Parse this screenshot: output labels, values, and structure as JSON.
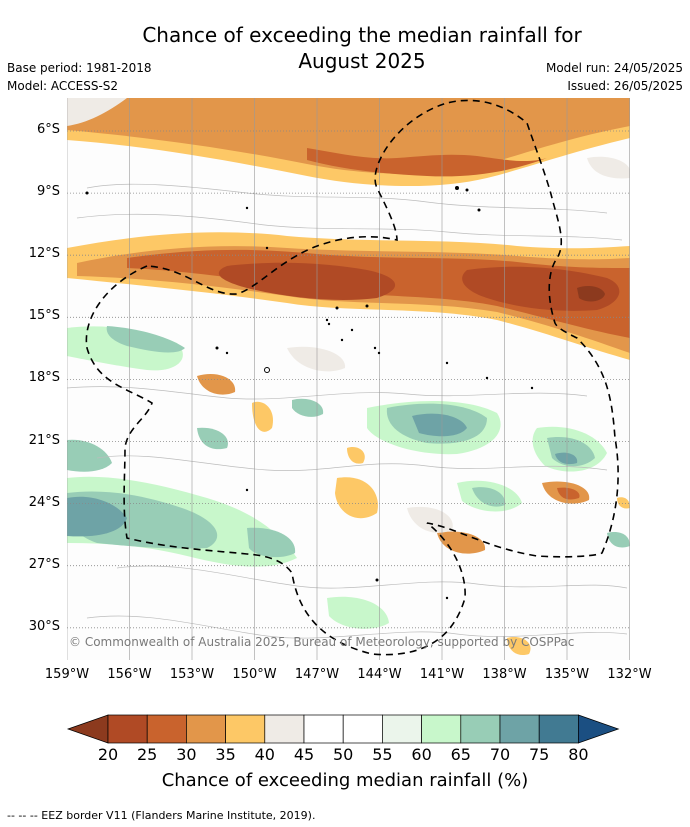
{
  "title_line1": "Chance of exceeding the median rainfall for",
  "title_line2": "August 2025",
  "base_period": "Base period: 1981-2018",
  "model": "Model: ACCESS-S2",
  "model_run": "Model run: 24/05/2025",
  "issued": "Issued: 26/05/2025",
  "lat_labels": [
    "6°S",
    "9°S",
    "12°S",
    "15°S",
    "18°S",
    "21°S",
    "24°S",
    "27°S",
    "30°S"
  ],
  "lon_labels": [
    "159°W",
    "156°W",
    "153°W",
    "150°W",
    "147°W",
    "144°W",
    "141°W",
    "138°W",
    "135°W",
    "132°W"
  ],
  "copyright": "© Commonwealth of Australia 2025, Bureau of Meteorology, supported by COSPPac",
  "colorbar": {
    "ticks": [
      "20",
      "25",
      "30",
      "35",
      "40",
      "45",
      "50",
      "55",
      "60",
      "65",
      "70",
      "75",
      "80"
    ],
    "colors": [
      "#8c3a1e",
      "#b04a25",
      "#c9632d",
      "#e2964a",
      "#fdc866",
      "#efebe6",
      "#ffffff",
      "#ffffff",
      "#ebf5eb",
      "#c8f7cb",
      "#98cdb6",
      "#6ea3a6",
      "#417a92",
      "#1b4f82"
    ],
    "title": "Chance of exceeding median rainfall (%)"
  },
  "eez_note": "--  --  -- EEZ border V11 (Flanders Marine Institute, 2019)."
}
